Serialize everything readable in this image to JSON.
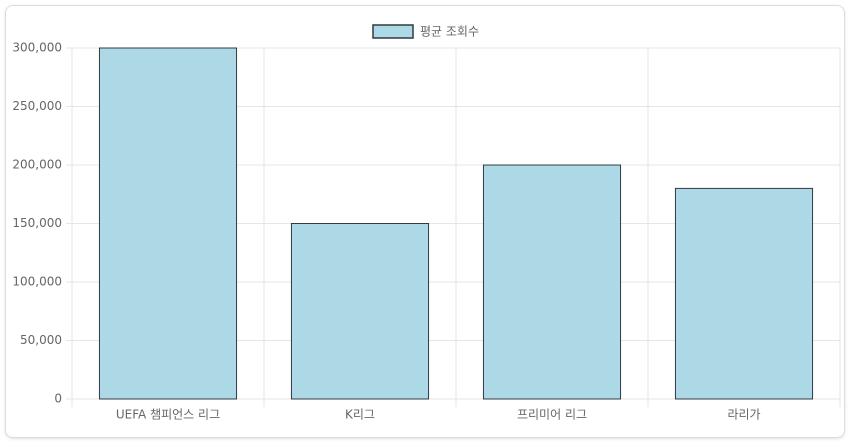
{
  "chart_data": {
    "type": "bar",
    "categories": [
      "UEFA 챔피언스 리그",
      "K리그",
      "프리미어 리그",
      "라리가"
    ],
    "series": [
      {
        "name": "평균 조회수",
        "color": "#add8e6",
        "values": [
          300000,
          150000,
          200000,
          180000
        ]
      }
    ],
    "ylim": [
      0,
      300000
    ],
    "yticks": [
      0,
      {
        "value": 50000,
        "label": "50,000"
      },
      {
        "value": 100000,
        "label": "100,000"
      },
      {
        "value": 150000,
        "label": "150,000"
      },
      {
        "value": 200000,
        "label": "200,000"
      },
      {
        "value": 250000,
        "label": "250,000"
      },
      {
        "value": 300000,
        "label": "300,000"
      }
    ],
    "grid": true,
    "legend": "top"
  }
}
